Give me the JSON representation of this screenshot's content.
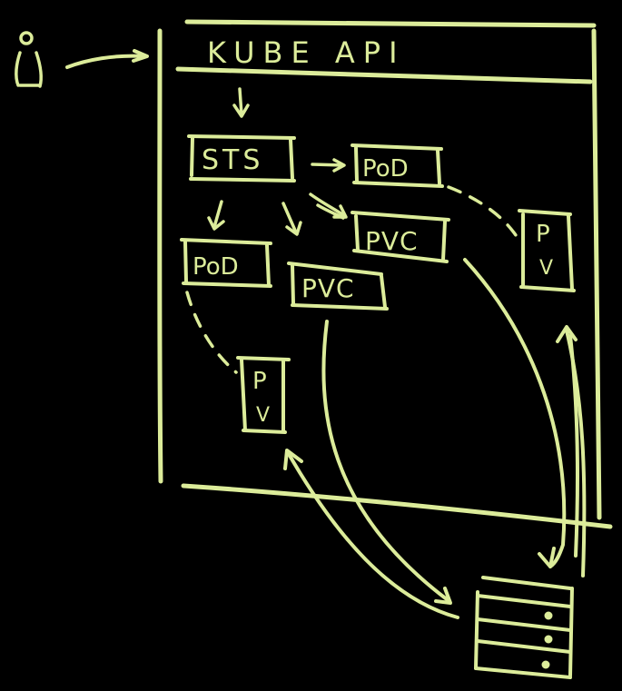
{
  "colors": {
    "background": "#000000",
    "ink": "#dcec9a"
  },
  "diagram": {
    "api_label": "KUBE API",
    "sts_label": "STS",
    "pod_top_label": "PoD",
    "pod_left_label": "PoD",
    "pvc_right_label": "PVC",
    "pvc_center_label": "PVC",
    "pv_right_label_p": "P",
    "pv_right_label_v": "V",
    "pv_left_label_p": "P",
    "pv_left_label_v": "V"
  },
  "icons": {
    "user": "user-icon",
    "storage": "storage-server-icon"
  }
}
